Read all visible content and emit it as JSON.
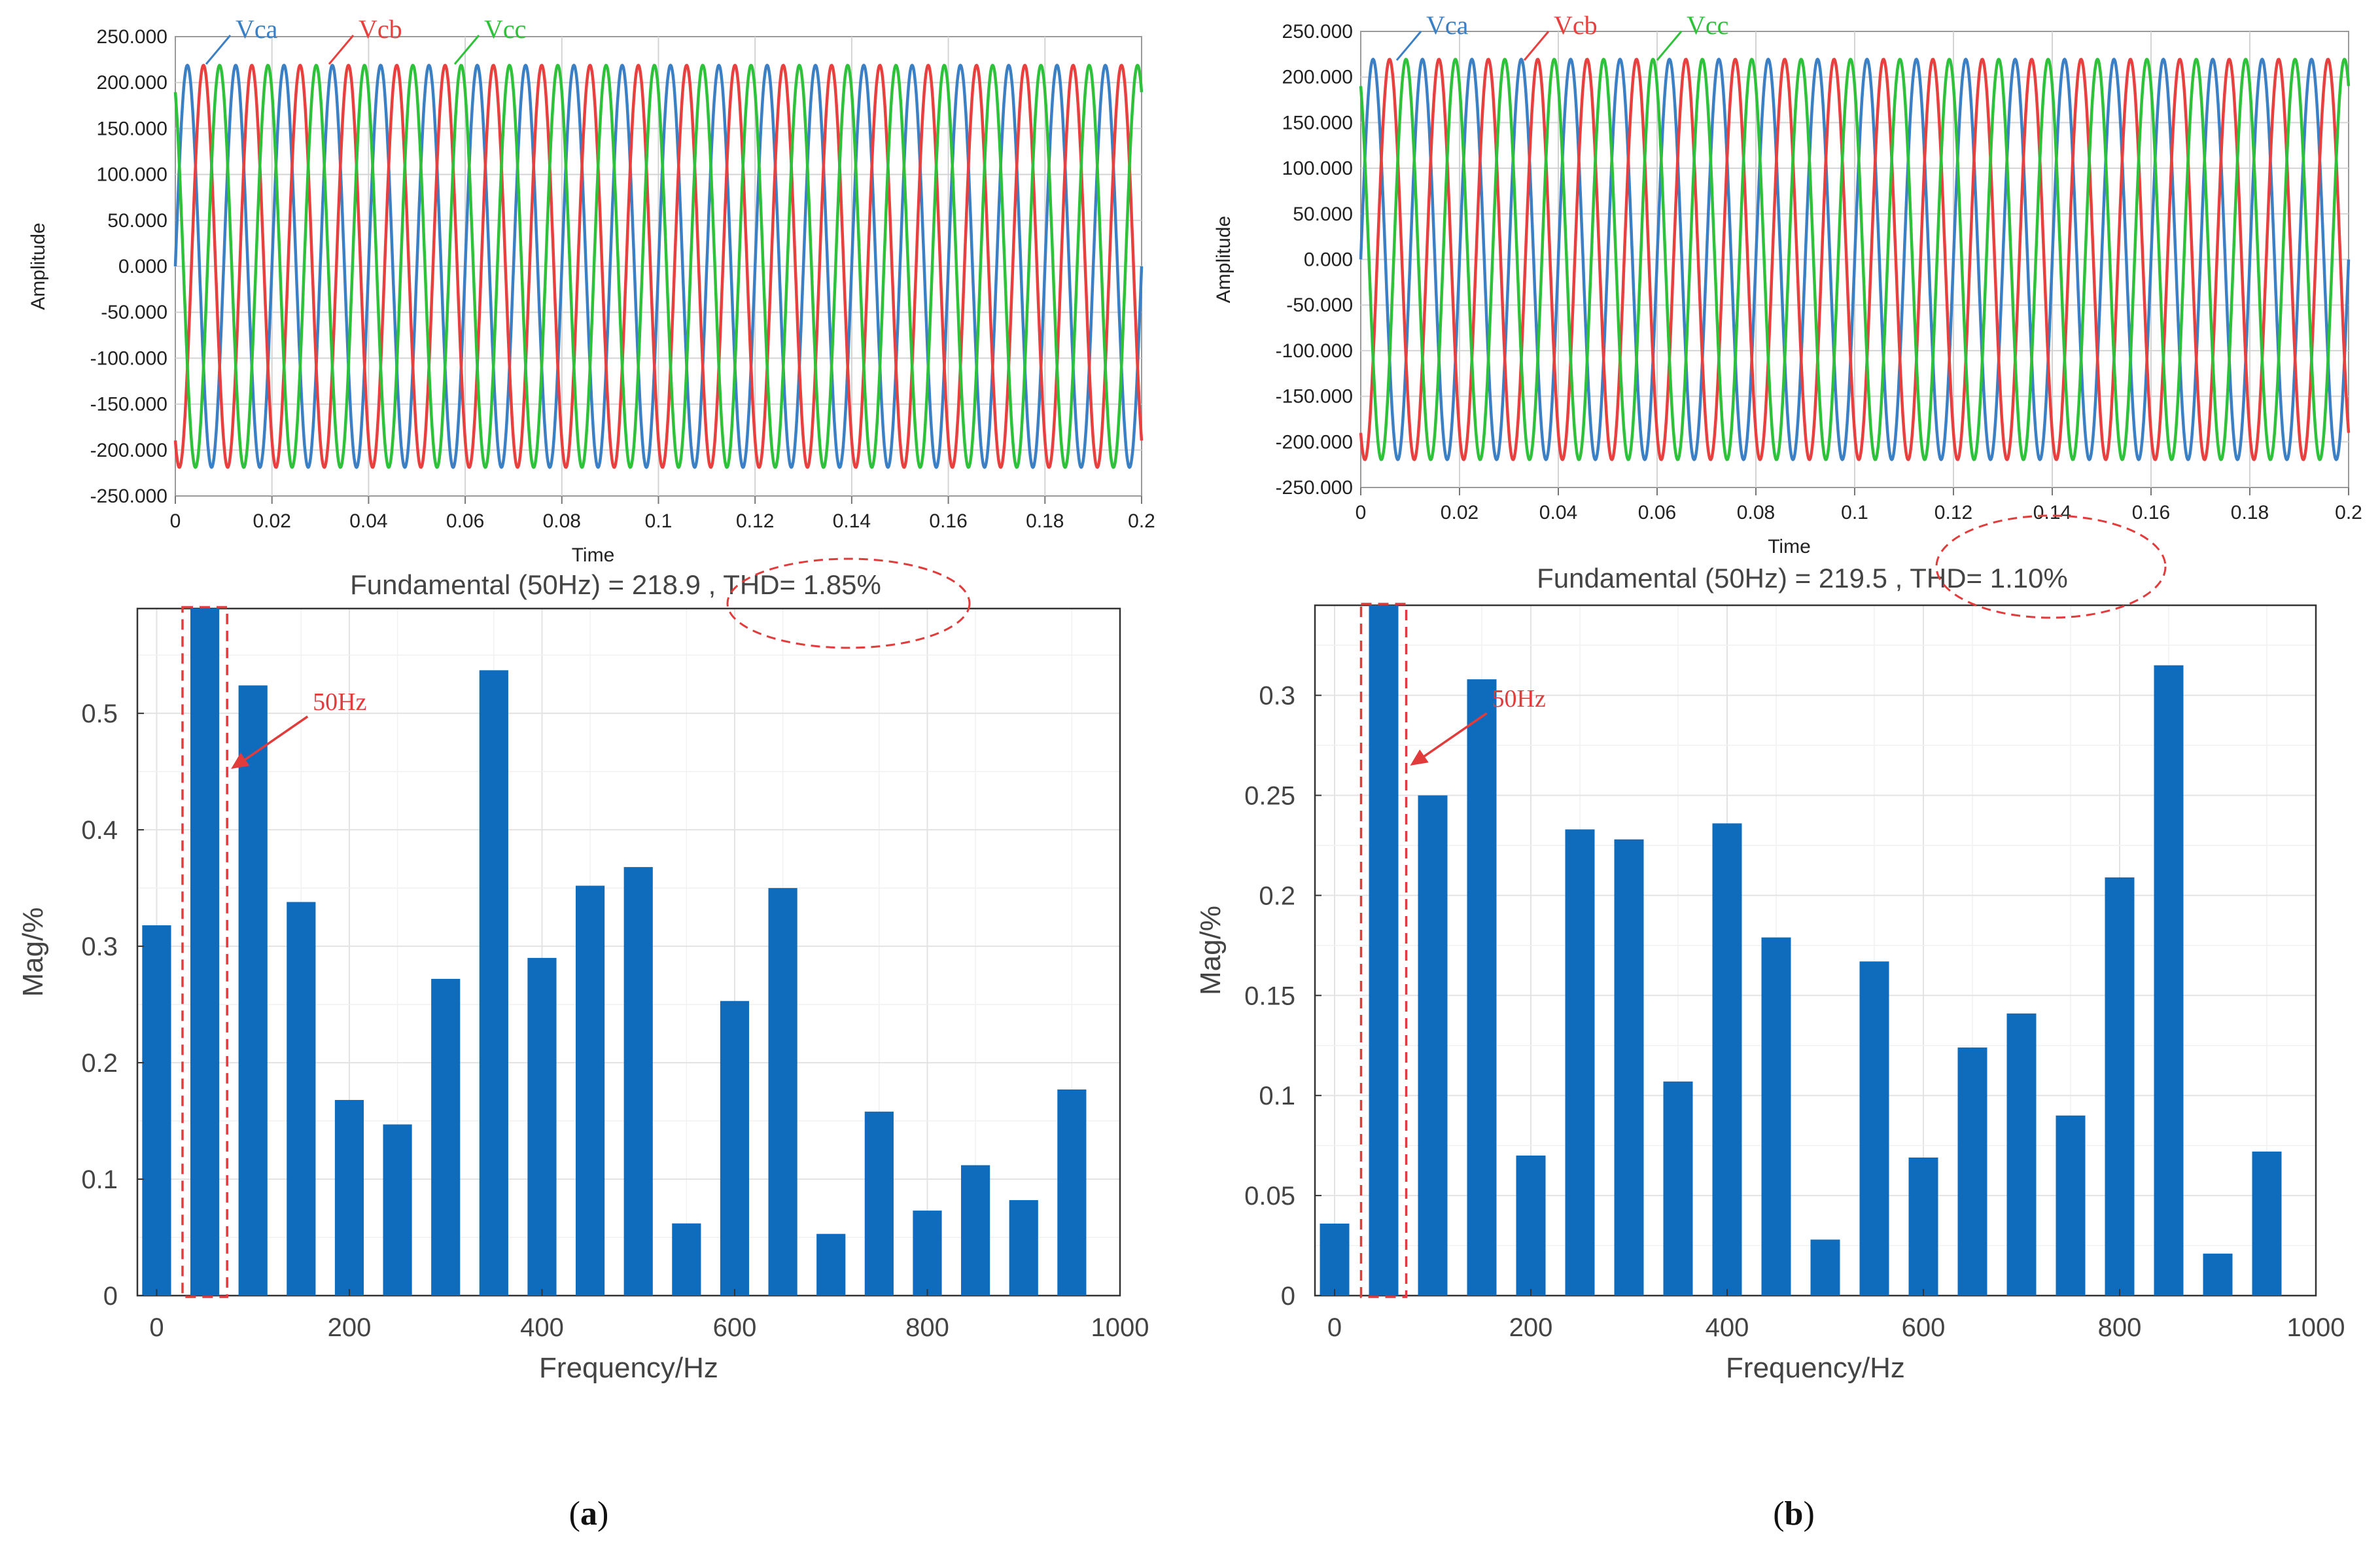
{
  "panels": [
    {
      "id": "a",
      "caption": "(a)",
      "caption_letter": "a",
      "wave": {
        "type": "line",
        "xlabel": "Time",
        "ylabel": "Amplitude",
        "xlim": [
          0,
          0.2
        ],
        "ylim": [
          -250,
          250
        ],
        "xticks": [
          0,
          0.02,
          0.04,
          0.06,
          0.08,
          0.1,
          0.12,
          0.14,
          0.16,
          0.18,
          0.2
        ],
        "xtick_labels": [
          "0",
          "0.02",
          "0.04",
          "0.06",
          "0.08",
          "0.1",
          "0.12",
          "0.14",
          "0.16",
          "0.18",
          "0.2"
        ],
        "yticks": [
          250,
          200,
          150,
          100,
          50,
          0,
          -50,
          -100,
          -150,
          -200,
          -250
        ],
        "ytick_labels": [
          "250.000",
          "200.000",
          "150.000",
          "100.000",
          "50.000",
          "0.000",
          "-50.000",
          "-100.000",
          "-150.000",
          "-200.000",
          "-250.000"
        ],
        "amplitude": 218.9,
        "frequency_hz": 100,
        "grid": true,
        "series": [
          {
            "name": "Vca",
            "phase_deg": 0,
            "color": "#3b7fc4"
          },
          {
            "name": "Vcb",
            "phase_deg": 120,
            "color": "#e8403e"
          },
          {
            "name": "Vcc",
            "phase_deg": -120,
            "color": "#2ec23a"
          }
        ]
      },
      "spectrum": {
        "type": "bar",
        "title": "Fundamental (50Hz) = 218.9 , THD= 1.85%",
        "xlabel": "Frequency/Hz",
        "ylabel": "Mag/%",
        "xlim": [
          -20,
          1000
        ],
        "ylim": [
          0,
          0.59
        ],
        "xticks": [
          0,
          200,
          400,
          600,
          800,
          1000
        ],
        "xtick_labels": [
          "0",
          "200",
          "400",
          "600",
          "800",
          "1000"
        ],
        "yticks": [
          0,
          0.1,
          0.2,
          0.3,
          0.4,
          0.5
        ],
        "ytick_labels": [
          "0",
          "0.1",
          "0.2",
          "0.3",
          "0.4",
          "0.5"
        ],
        "bar_color": "#0f6cbd",
        "grid": true,
        "x": [
          0,
          50,
          100,
          150,
          200,
          250,
          300,
          350,
          400,
          450,
          500,
          550,
          600,
          650,
          700,
          750,
          800,
          850,
          900,
          950
        ],
        "values": [
          0.318,
          0.59,
          0.524,
          0.338,
          0.168,
          0.147,
          0.272,
          0.537,
          0.29,
          0.352,
          0.368,
          0.062,
          0.253,
          0.35,
          0.053,
          0.158,
          0.073,
          0.112,
          0.082,
          0.177
        ],
        "highlight_x": 50,
        "annotation": "50Hz"
      }
    },
    {
      "id": "b",
      "caption": "(b)",
      "caption_letter": "b",
      "wave": {
        "type": "line",
        "xlabel": "Time",
        "ylabel": "Amplitude",
        "xlim": [
          0,
          0.2
        ],
        "ylim": [
          -250,
          250
        ],
        "xticks": [
          0,
          0.02,
          0.04,
          0.06,
          0.08,
          0.1,
          0.12,
          0.14,
          0.16,
          0.18,
          0.2
        ],
        "xtick_labels": [
          "0",
          "0.02",
          "0.04",
          "0.06",
          "0.08",
          "0.1",
          "0.12",
          "0.14",
          "0.16",
          "0.18",
          "0.2"
        ],
        "yticks": [
          250,
          200,
          150,
          100,
          50,
          0,
          -50,
          -100,
          -150,
          -200,
          -250
        ],
        "ytick_labels": [
          "250.000",
          "200.000",
          "150.000",
          "100.000",
          "50.000",
          "0.000",
          "-50.000",
          "-100.000",
          "-150.000",
          "-200.000",
          "-250.000"
        ],
        "amplitude": 219.5,
        "frequency_hz": 100,
        "grid": true,
        "series": [
          {
            "name": "Vca",
            "phase_deg": 0,
            "color": "#3b7fc4"
          },
          {
            "name": "Vcb",
            "phase_deg": 120,
            "color": "#e8403e"
          },
          {
            "name": "Vcc",
            "phase_deg": -120,
            "color": "#2ec23a"
          }
        ]
      },
      "spectrum": {
        "type": "bar",
        "title": "Fundamental (50Hz) = 219.5 , THD= 1.10%",
        "xlabel": "Frequency/Hz",
        "ylabel": "Mag/%",
        "xlim": [
          -20,
          1000
        ],
        "ylim": [
          0,
          0.345
        ],
        "xticks": [
          0,
          200,
          400,
          600,
          800,
          1000
        ],
        "xtick_labels": [
          "0",
          "200",
          "400",
          "600",
          "800",
          "1000"
        ],
        "yticks": [
          0,
          0.05,
          0.1,
          0.15,
          0.2,
          0.25,
          0.3
        ],
        "ytick_labels": [
          "0",
          "0.05",
          "0.1",
          "0.15",
          "0.2",
          "0.25",
          "0.3"
        ],
        "bar_color": "#0f6cbd",
        "grid": true,
        "x": [
          0,
          50,
          100,
          150,
          200,
          250,
          300,
          350,
          400,
          450,
          500,
          550,
          600,
          650,
          700,
          750,
          800,
          850,
          900,
          950
        ],
        "values": [
          0.036,
          0.345,
          0.25,
          0.308,
          0.07,
          0.233,
          0.228,
          0.107,
          0.236,
          0.179,
          0.028,
          0.167,
          0.069,
          0.124,
          0.141,
          0.09,
          0.209,
          0.315,
          0.021,
          0.072
        ],
        "highlight_x": 50,
        "annotation": "50Hz"
      }
    }
  ]
}
